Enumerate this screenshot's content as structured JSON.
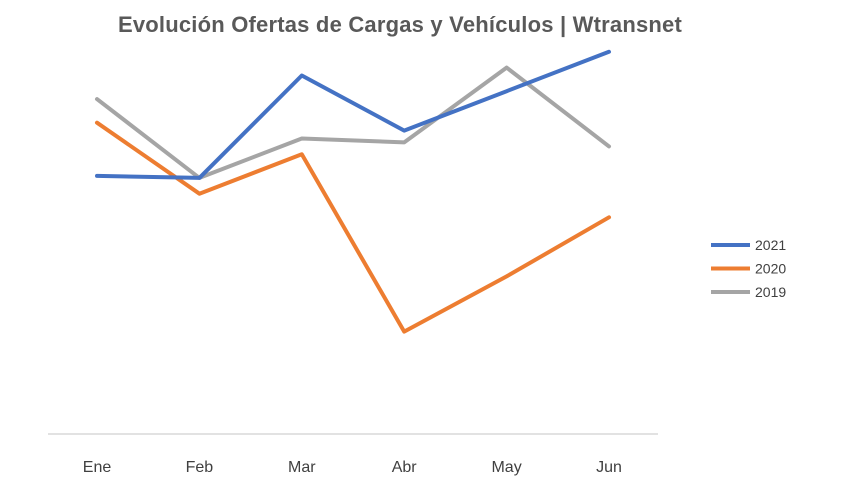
{
  "chart_data": {
    "type": "line",
    "title": "Evolución Ofertas de Cargas y Vehículos | Wtransnet",
    "xlabel": "",
    "ylabel": "",
    "categories": [
      "Ene",
      "Feb",
      "Mar",
      "Abr",
      "May",
      "Jun"
    ],
    "ylim": [
      0,
      100
    ],
    "grid": false,
    "legend_position": "right",
    "series": [
      {
        "name": "2021",
        "color": "#4472C4",
        "values": [
          65.5,
          65,
          91,
          77,
          87,
          97
        ]
      },
      {
        "name": "2020",
        "color": "#ED7D31",
        "values": [
          79,
          61,
          71,
          26,
          40,
          55
        ]
      },
      {
        "name": "2019",
        "color": "#A5A5A5",
        "values": [
          85,
          65,
          75,
          74,
          93,
          73
        ]
      }
    ]
  }
}
